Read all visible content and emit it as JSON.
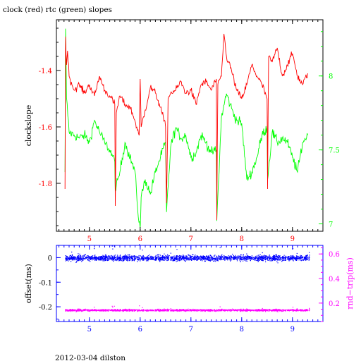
{
  "page": {
    "title": "clock (red) rtc (green) slopes",
    "footer": "2012-03-04 dilston"
  },
  "chart_data": [
    {
      "type": "line",
      "title": "clock (red) rtc (green) slopes",
      "xlabel": "",
      "xlim": [
        4.35,
        9.6
      ],
      "x_ticks": [
        "5",
        "6",
        "7",
        "8",
        "9"
      ],
      "left_axis": {
        "label": "clockslope",
        "ylim": [
          -1.97,
          -1.22
        ],
        "ticks": [
          "-1.4",
          "-1.6",
          "-1.8"
        ],
        "color": "#ff0000"
      },
      "right_axis": {
        "label": "",
        "ylim": [
          6.95,
          8.38
        ],
        "ticks": [
          "8",
          "7.5",
          "7"
        ],
        "color": "#00ff00"
      },
      "grid": false,
      "series": [
        {
          "color": "#ff0000",
          "axis": "left",
          "x": [
            4.52,
            4.53,
            4.55,
            4.57,
            4.6,
            4.7,
            4.8,
            4.9,
            5.0,
            5.1,
            5.2,
            5.3,
            5.4,
            5.5,
            5.51,
            5.53,
            5.6,
            5.7,
            5.8,
            5.9,
            5.98,
            6.0,
            6.02,
            6.1,
            6.2,
            6.3,
            6.4,
            6.5,
            6.52,
            6.55,
            6.6,
            6.7,
            6.8,
            6.9,
            7.0,
            7.1,
            7.2,
            7.3,
            7.4,
            7.5,
            7.51,
            7.53,
            7.6,
            7.65,
            7.7,
            7.8,
            7.9,
            8.0,
            8.1,
            8.2,
            8.3,
            8.4,
            8.5,
            8.51,
            8.53,
            8.6,
            8.7,
            8.8,
            8.9,
            9.0,
            9.1,
            9.2,
            9.3
          ],
          "values": [
            -1.82,
            -1.28,
            -1.38,
            -1.33,
            -1.42,
            -1.47,
            -1.45,
            -1.48,
            -1.45,
            -1.49,
            -1.42,
            -1.47,
            -1.49,
            -1.52,
            -1.88,
            -1.55,
            -1.49,
            -1.52,
            -1.53,
            -1.58,
            -1.63,
            -1.43,
            -1.6,
            -1.54,
            -1.46,
            -1.48,
            -1.53,
            -1.6,
            -1.87,
            -1.5,
            -1.48,
            -1.47,
            -1.44,
            -1.48,
            -1.47,
            -1.52,
            -1.45,
            -1.44,
            -1.47,
            -1.43,
            -1.93,
            -1.45,
            -1.42,
            -1.27,
            -1.35,
            -1.4,
            -1.47,
            -1.5,
            -1.45,
            -1.38,
            -1.42,
            -1.45,
            -1.5,
            -1.82,
            -1.35,
            -1.37,
            -1.32,
            -1.42,
            -1.38,
            -1.34,
            -1.42,
            -1.45,
            -1.41
          ]
        },
        {
          "color": "#00ff00",
          "axis": "right",
          "x": [
            4.52,
            4.53,
            4.55,
            4.6,
            4.7,
            4.8,
            4.9,
            5.0,
            5.1,
            5.2,
            5.3,
            5.4,
            5.5,
            5.51,
            5.6,
            5.7,
            5.8,
            5.9,
            5.95,
            6.0,
            6.02,
            6.1,
            6.2,
            6.3,
            6.4,
            6.5,
            6.52,
            6.6,
            6.7,
            6.8,
            6.9,
            7.0,
            7.1,
            7.2,
            7.3,
            7.4,
            7.5,
            7.51,
            7.6,
            7.7,
            7.8,
            7.9,
            8.0,
            8.1,
            8.2,
            8.3,
            8.4,
            8.5,
            8.51,
            8.6,
            8.7,
            8.8,
            8.9,
            9.0,
            9.1,
            9.2,
            9.3
          ],
          "values": [
            7.35,
            8.32,
            7.85,
            7.62,
            7.6,
            7.58,
            7.6,
            7.55,
            7.7,
            7.62,
            7.55,
            7.5,
            7.42,
            7.22,
            7.35,
            7.55,
            7.45,
            7.35,
            7.1,
            6.97,
            7.18,
            7.3,
            7.2,
            7.35,
            7.45,
            7.55,
            7.08,
            7.52,
            7.65,
            7.58,
            7.6,
            7.45,
            7.48,
            7.6,
            7.55,
            7.48,
            7.5,
            7.02,
            7.72,
            7.88,
            7.78,
            7.7,
            7.68,
            7.3,
            7.35,
            7.45,
            7.6,
            7.65,
            7.3,
            7.62,
            7.55,
            7.58,
            7.55,
            7.45,
            7.35,
            7.55,
            7.6
          ]
        }
      ]
    },
    {
      "type": "scatter",
      "title": "",
      "xlim": [
        4.35,
        9.6
      ],
      "x_ticks": [
        "5",
        "6",
        "7",
        "8",
        "9"
      ],
      "left_axis": {
        "label": "offset(ms)",
        "ylim": [
          -0.26,
          0.05
        ],
        "ticks": [
          "0",
          "-0.1",
          "-0.2"
        ],
        "color": "#0000ff"
      },
      "right_axis": {
        "label": "rnd−trip(ms)",
        "ylim": [
          0.05,
          0.67
        ],
        "ticks": [
          "0.6",
          "0.4",
          "0.2"
        ],
        "color": "#ff00ff"
      },
      "grid": false,
      "series": [
        {
          "color": "#0000ff",
          "axis": "left",
          "x_range": [
            4.52,
            9.33
          ],
          "mean": 0.0,
          "spread": 0.012
        },
        {
          "color": "#ff00ff",
          "axis": "right",
          "x_range": [
            4.52,
            9.33
          ],
          "mean": 0.145,
          "spread": 0.008
        }
      ]
    }
  ]
}
